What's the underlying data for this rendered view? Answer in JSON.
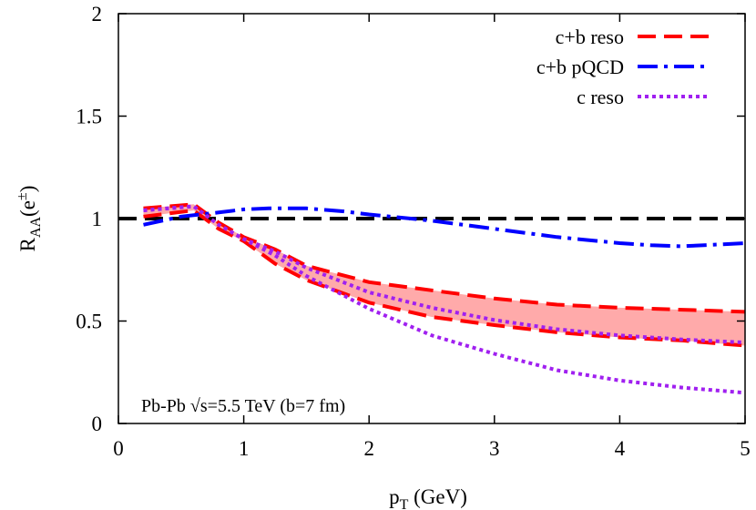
{
  "chart_data": {
    "type": "line",
    "title": "",
    "xlabel": {
      "main": "p",
      "sub": "T",
      "rest": " (GeV)"
    },
    "ylabel": {
      "main": "R",
      "sub": "AA",
      "open": "(e",
      "sup": "±",
      "close": ")"
    },
    "xlim": [
      0,
      5
    ],
    "ylim": [
      0,
      2
    ],
    "xticks": [
      "0",
      "1",
      "2",
      "3",
      "4",
      "5"
    ],
    "yticks": [
      "0",
      "0.5",
      "1",
      "1.5",
      "2"
    ],
    "grid": false,
    "legend_position": "top-right",
    "annotation": "Pb-Pb √s=5.5 TeV (b=7 fm)",
    "reference_line": {
      "y": 1.0,
      "color": "#000000"
    },
    "band": {
      "color": "#ffaaaa",
      "upper": {
        "x": [
          0.2,
          0.6,
          0.8,
          1.0,
          1.25,
          1.5,
          2.0,
          2.5,
          3.0,
          3.5,
          4.0,
          4.5,
          5.0
        ],
        "y": [
          1.05,
          1.07,
          0.98,
          0.91,
          0.85,
          0.77,
          0.69,
          0.65,
          0.61,
          0.58,
          0.565,
          0.555,
          0.545
        ]
      },
      "lower": {
        "x": [
          0.2,
          0.6,
          0.8,
          1.0,
          1.25,
          1.5,
          2.0,
          2.5,
          3.0,
          3.5,
          4.0,
          4.5,
          5.0
        ],
        "y": [
          1.01,
          1.04,
          0.95,
          0.89,
          0.78,
          0.7,
          0.59,
          0.52,
          0.48,
          0.445,
          0.42,
          0.405,
          0.38
        ]
      }
    },
    "series": [
      {
        "name": "c+b reso",
        "color": "#ff0000",
        "style": "dashed",
        "x": [
          0.2,
          0.6,
          0.8,
          1.0,
          1.25,
          1.5,
          2.0,
          2.5,
          3.0,
          3.5,
          4.0,
          4.5,
          5.0
        ],
        "y": [
          1.05,
          1.07,
          0.98,
          0.91,
          0.85,
          0.77,
          0.69,
          0.65,
          0.61,
          0.58,
          0.565,
          0.555,
          0.545
        ],
        "y_lower": [
          1.01,
          1.04,
          0.95,
          0.89,
          0.78,
          0.7,
          0.59,
          0.52,
          0.48,
          0.445,
          0.42,
          0.405,
          0.38
        ]
      },
      {
        "name": "c+b pQCD",
        "color": "#0000ff",
        "style": "dash-dot",
        "x": [
          0.2,
          0.5,
          0.8,
          1.0,
          1.2,
          1.5,
          1.8,
          2.0,
          2.5,
          3.0,
          3.5,
          4.0,
          4.25,
          4.5,
          5.0
        ],
        "y": [
          0.97,
          1.01,
          1.03,
          1.045,
          1.05,
          1.05,
          1.035,
          1.02,
          0.99,
          0.95,
          0.91,
          0.88,
          0.87,
          0.865,
          0.88
        ]
      },
      {
        "name": "c reso",
        "color": "#a020f0",
        "style": "dotted",
        "x": [
          0.2,
          0.6,
          0.8,
          1.0,
          1.25,
          1.5,
          2.0,
          2.5,
          3.0,
          3.5,
          4.0,
          4.5,
          5.0
        ],
        "y": [
          1.04,
          1.06,
          0.97,
          0.9,
          0.82,
          0.72,
          0.56,
          0.43,
          0.34,
          0.26,
          0.21,
          0.175,
          0.15
        ],
        "y_upper": [
          1.04,
          1.06,
          0.97,
          0.9,
          0.84,
          0.76,
          0.64,
          0.565,
          0.505,
          0.46,
          0.43,
          0.41,
          0.395
        ]
      }
    ]
  }
}
